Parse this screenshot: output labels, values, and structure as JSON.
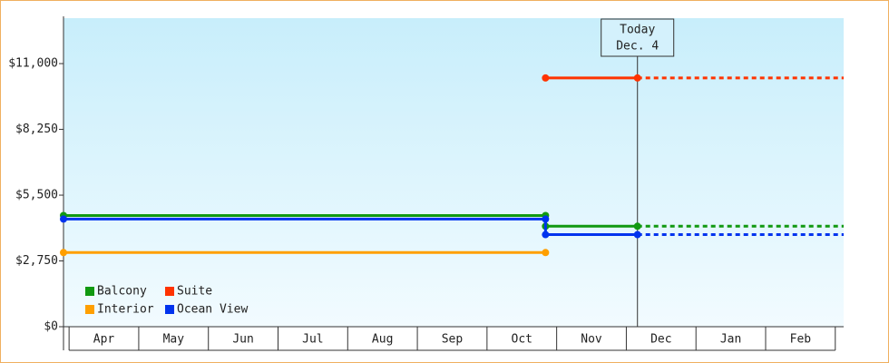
{
  "chart_data": {
    "type": "step-line",
    "categories": [
      "Apr",
      "May",
      "Jun",
      "Jul",
      "Aug",
      "Sep",
      "Oct",
      "Nov",
      "Dec",
      "Jan",
      "Feb"
    ],
    "xlim": [
      -0.08,
      11.12
    ],
    "ylim": [
      0,
      12900
    ],
    "yticks": [
      {
        "value": 0,
        "label": "$0"
      },
      {
        "value": 2750,
        "label": "$2,750"
      },
      {
        "value": 5500,
        "label": "$5,500"
      },
      {
        "value": 8250,
        "label": "$8,250"
      },
      {
        "value": 11000,
        "label": "$11,000"
      }
    ],
    "today": {
      "x": 8.16,
      "label": [
        "Today",
        "Dec. 4"
      ]
    },
    "legend": "lower left",
    "series": [
      {
        "name": "Balcony",
        "color": "#119911",
        "x": [
          -0.08,
          6.84,
          6.84,
          8.16
        ],
        "values": [
          4650,
          4650,
          4200,
          4200
        ],
        "forecast_x": [
          8.16,
          11.12
        ],
        "forecast_values": [
          4200,
          4200
        ]
      },
      {
        "name": "Suite",
        "color": "#ff3300",
        "x": [
          6.84,
          8.16
        ],
        "values": [
          10400,
          10400
        ],
        "forecast_x": [
          8.16,
          11.12
        ],
        "forecast_values": [
          10400,
          10400
        ]
      },
      {
        "name": "Interior",
        "color": "#ff9f00",
        "x": [
          -0.08,
          6.84
        ],
        "values": [
          3100,
          3100
        ],
        "forecast_x": [],
        "forecast_values": []
      },
      {
        "name": "Ocean View",
        "color": "#0033ee",
        "x": [
          -0.08,
          6.84,
          6.84,
          8.16
        ],
        "values": [
          4500,
          4500,
          3850,
          3850
        ],
        "forecast_x": [
          8.16,
          11.12
        ],
        "forecast_values": [
          3850,
          3850
        ]
      }
    ]
  }
}
